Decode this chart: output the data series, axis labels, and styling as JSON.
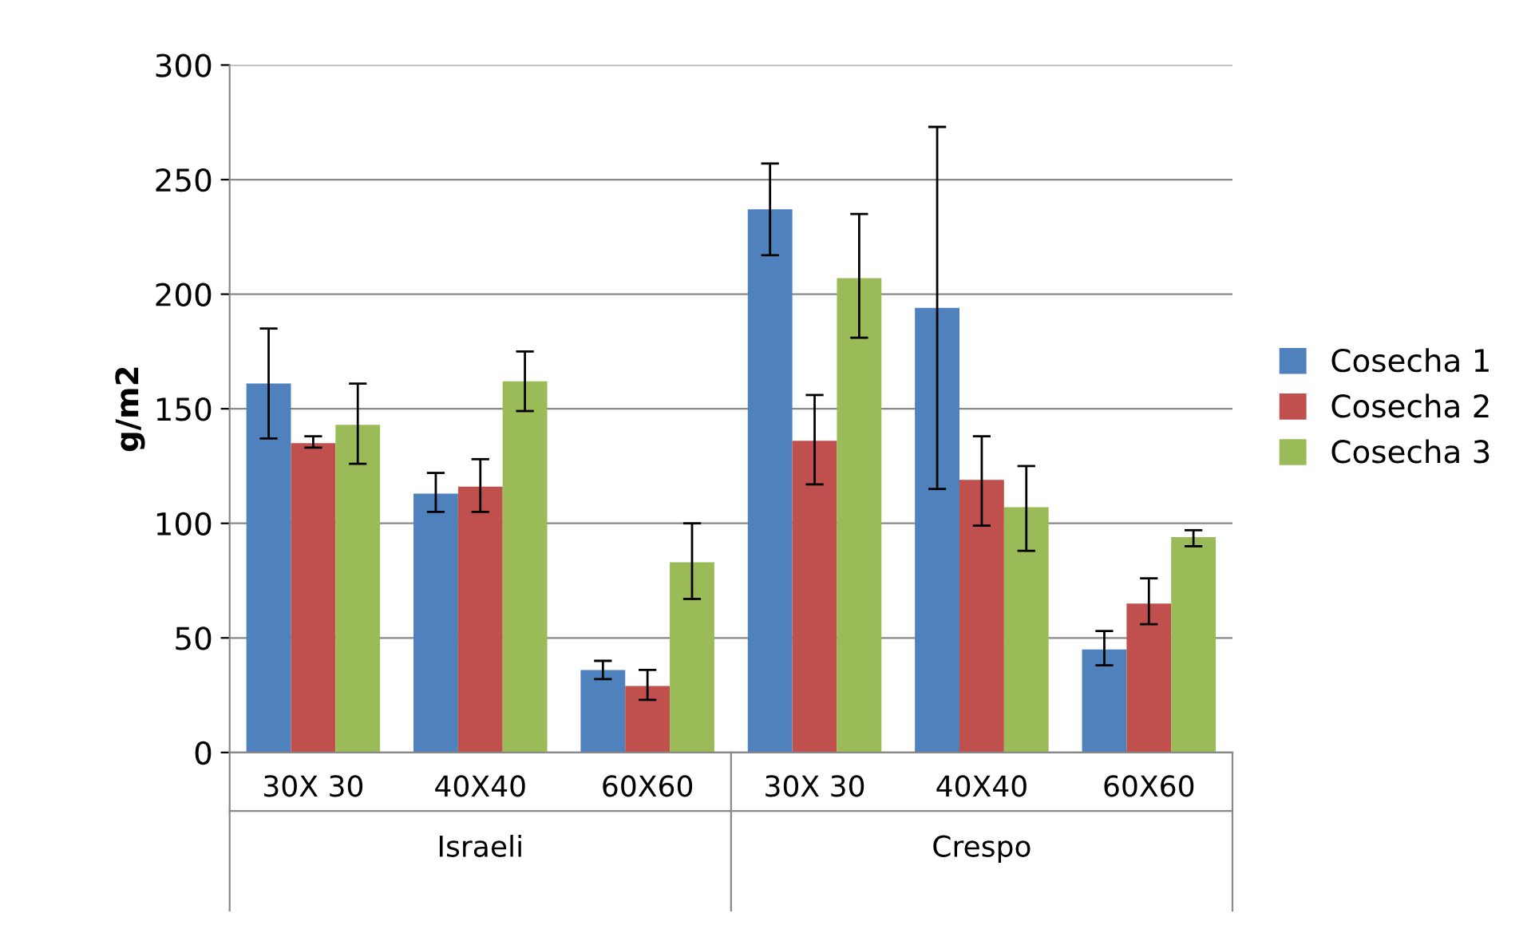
{
  "chart_data": {
    "type": "bar",
    "ylabel": "g/m2",
    "categories": [
      "30X 30",
      "40X40",
      "60X60",
      "30X 30",
      "40X40",
      "60X60"
    ],
    "annotations": [
      "Israeli",
      "Crespo"
    ],
    "series": [
      {
        "name": "Cosecha 1",
        "color": "#4f81bd",
        "values": [
          161,
          113,
          36,
          237,
          194,
          45
        ],
        "errors": [
          [
            137,
            185
          ],
          [
            105,
            122
          ],
          [
            32,
            40
          ],
          [
            217,
            257
          ],
          [
            115,
            273
          ],
          [
            38,
            53
          ]
        ]
      },
      {
        "name": "Cosecha 2",
        "color": "#c0504d",
        "values": [
          135,
          116,
          29,
          136,
          119,
          65
        ],
        "errors": [
          [
            133,
            138
          ],
          [
            105,
            128
          ],
          [
            23,
            36
          ],
          [
            117,
            156
          ],
          [
            99,
            138
          ],
          [
            56,
            76
          ]
        ]
      },
      {
        "name": "Cosecha 3",
        "color": "#9bbb59",
        "values": [
          143,
          162,
          83,
          207,
          107,
          94
        ],
        "errors": [
          [
            126,
            161
          ],
          [
            149,
            175
          ],
          [
            67,
            100
          ],
          [
            181,
            235
          ],
          [
            88,
            125
          ],
          [
            90,
            97
          ]
        ]
      }
    ],
    "ylim": [
      0,
      300
    ],
    "yticks": [
      0,
      50,
      100,
      150,
      200,
      250,
      300
    ],
    "grid": "y",
    "legend": "right"
  }
}
